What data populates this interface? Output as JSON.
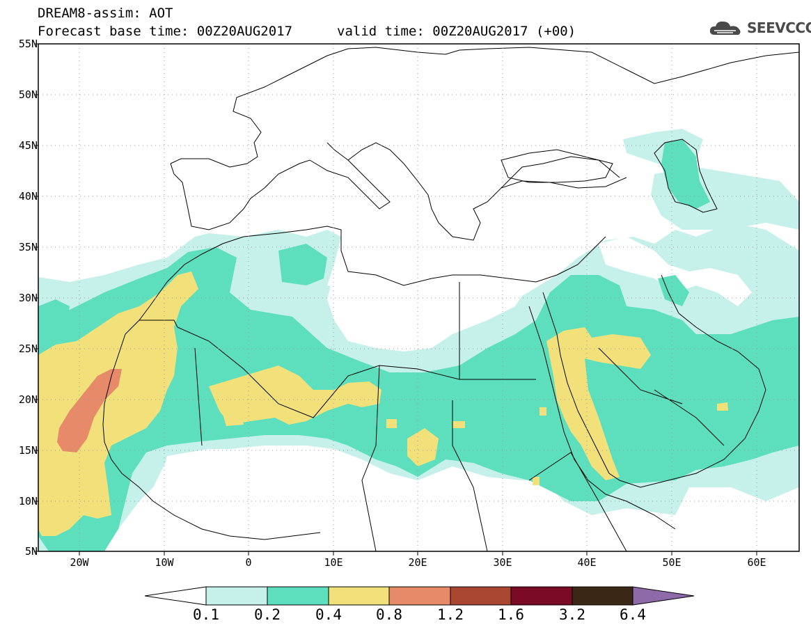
{
  "header": {
    "title": "DREAM8-assim: AOT",
    "base_time": "Forecast base time: 00Z20AUG2017",
    "valid_time": "valid time: 00Z20AUG2017 (+00)",
    "logo_text": "SEEVCCC"
  },
  "map": {
    "lat_labels": [
      "55N",
      "50N",
      "45N",
      "40N",
      "35N",
      "30N",
      "25N",
      "20N",
      "15N",
      "10N",
      "5N"
    ],
    "lon_labels": [
      "20W",
      "10W",
      "0",
      "10E",
      "20E",
      "30E",
      "40E",
      "50E",
      "60E"
    ],
    "legend_levels": [
      "0.1",
      "0.2",
      "0.4",
      "0.8",
      "1.2",
      "1.6",
      "3.2",
      "6.4"
    ],
    "legend_colors": [
      "#ffffff",
      "#c6f0ea",
      "#5ddfbe",
      "#f2e17a",
      "#e68a69",
      "#a94733",
      "#7a0a25",
      "#3b2715",
      "#8f6aa8"
    ],
    "grid": "dotted",
    "projection": "lat-lon",
    "extent": {
      "lon": [
        -25,
        65
      ],
      "lat": [
        5,
        55
      ]
    }
  }
}
